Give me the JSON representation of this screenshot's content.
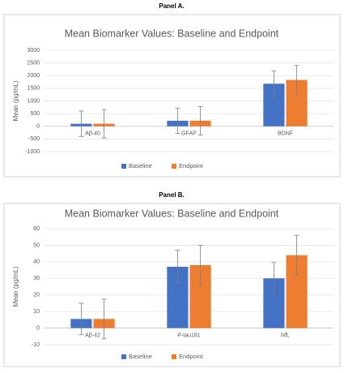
{
  "chart_data": [
    {
      "type": "bar",
      "label": "Panel A.",
      "title": "Mean Biomarker Values: Baseline and Endpoint",
      "y_label": "Mean (pg/mL)",
      "categories": [
        "Aβ-40",
        "GFAP",
        "BDNF"
      ],
      "series": [
        {
          "name": "Baseline",
          "color": "#4472c4",
          "values": [
            100,
            220,
            1680
          ],
          "errors": [
            500,
            500,
            500
          ]
        },
        {
          "name": "Endpoint",
          "color": "#ed7d31",
          "values": [
            100,
            220,
            1830
          ],
          "errors": [
            560,
            560,
            570
          ]
        }
      ],
      "ylim": [
        -1000,
        3000
      ],
      "yticks": [
        -1000,
        -500,
        0,
        500,
        1000,
        1500,
        2000,
        2500,
        3000
      ],
      "grid": true,
      "legend": "bottom"
    },
    {
      "type": "bar",
      "label": "Panel B.",
      "title": "Mean Biomarker Values: Baseline and Endpoint",
      "y_label": "Mean (pg/mL)",
      "categories": [
        "Aβ-42",
        "P-tau181",
        "NfL"
      ],
      "series": [
        {
          "name": "Baseline",
          "color": "#4472c4",
          "values": [
            5.5,
            37,
            30
          ],
          "errors": [
            9.5,
            10,
            9.5
          ]
        },
        {
          "name": "Endpoint",
          "color": "#ed7d31",
          "values": [
            5.5,
            38,
            44
          ],
          "errors": [
            12,
            12,
            12
          ]
        }
      ],
      "ylim": [
        -10,
        60
      ],
      "yticks": [
        -10,
        0,
        10,
        20,
        30,
        40,
        50,
        60
      ],
      "grid": true,
      "legend": "bottom"
    }
  ]
}
